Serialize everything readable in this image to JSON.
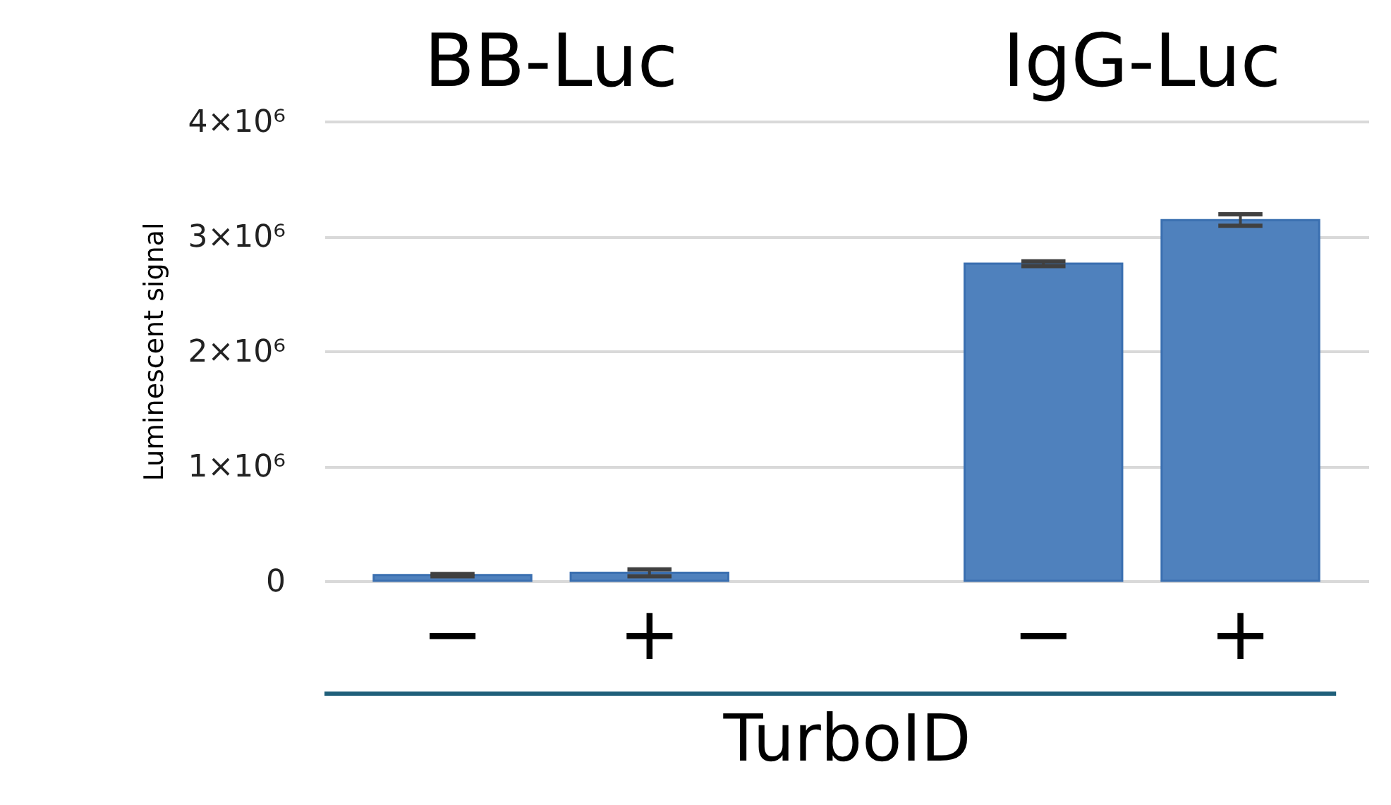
{
  "chart_data": {
    "type": "bar",
    "categories": [
      "−",
      "+",
      "−",
      "+"
    ],
    "values": [
      50000,
      70000,
      2760000,
      3140000
    ],
    "errors": [
      10000,
      30000,
      20000,
      50000
    ],
    "color": "#4f81bd",
    "ylabel": "Luminescent signal",
    "xlabel": "TurboID",
    "annotations": [
      "BB-Luc",
      "IgG-Luc"
    ],
    "ylim": [
      0,
      4000000
    ],
    "yticks": [
      0,
      {
        "value": 1000000,
        "label": "1×10⁶"
      },
      {
        "value": 2000000,
        "label": "2×10⁶"
      },
      {
        "value": 3000000,
        "label": "3×10⁶"
      },
      {
        "value": 4000000,
        "label": "4×10⁶"
      }
    ],
    "grid": "y"
  }
}
